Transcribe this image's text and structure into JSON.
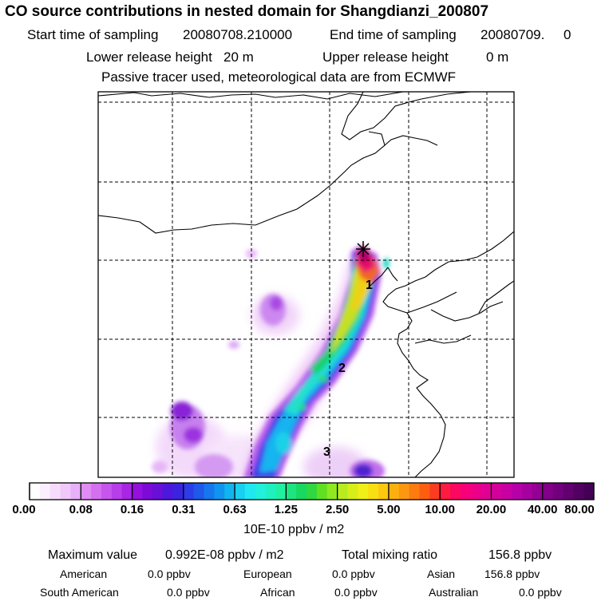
{
  "title": "CO  source contributions in nested domain for Shangdianzi_200807",
  "sampling": {
    "start_label": "Start time of sampling",
    "start_value": "20080708.210000",
    "end_label": "End time of sampling",
    "end_value": "20080709.     0"
  },
  "release": {
    "lower_label": "Lower release height",
    "lower_value": "20 m",
    "upper_label": "Upper release height",
    "upper_value": "0 m"
  },
  "note": "Passive tracer used, meteorological data are from ECMWF",
  "map": {
    "site_marker": "star-cross-icon",
    "trajectory_labels": [
      "1",
      "2",
      "3"
    ]
  },
  "colorbar": {
    "ticks": [
      "0.00",
      "0.08",
      "0.16",
      "0.31",
      "0.63",
      "1.25",
      "2.50",
      "5.00",
      "10.00",
      "20.00",
      "40.00",
      "80.00"
    ],
    "unit": "10E-10 ppbv / m2"
  },
  "stats": {
    "max_label": "Maximum value",
    "max_value": "0.992E-08 ppbv / m2",
    "total_label": "Total mixing ratio",
    "total_value": "156.8 ppbv",
    "regions": [
      {
        "name": "American",
        "value": "0.0 ppbv"
      },
      {
        "name": "European",
        "value": "0.0 ppbv"
      },
      {
        "name": "Asian",
        "value": "156.8 ppbv"
      },
      {
        "name": "South American",
        "value": "0.0 ppbv"
      },
      {
        "name": "African",
        "value": "0.0 ppbv"
      },
      {
        "name": "Australian",
        "value": "0.0 ppbv"
      }
    ]
  }
}
